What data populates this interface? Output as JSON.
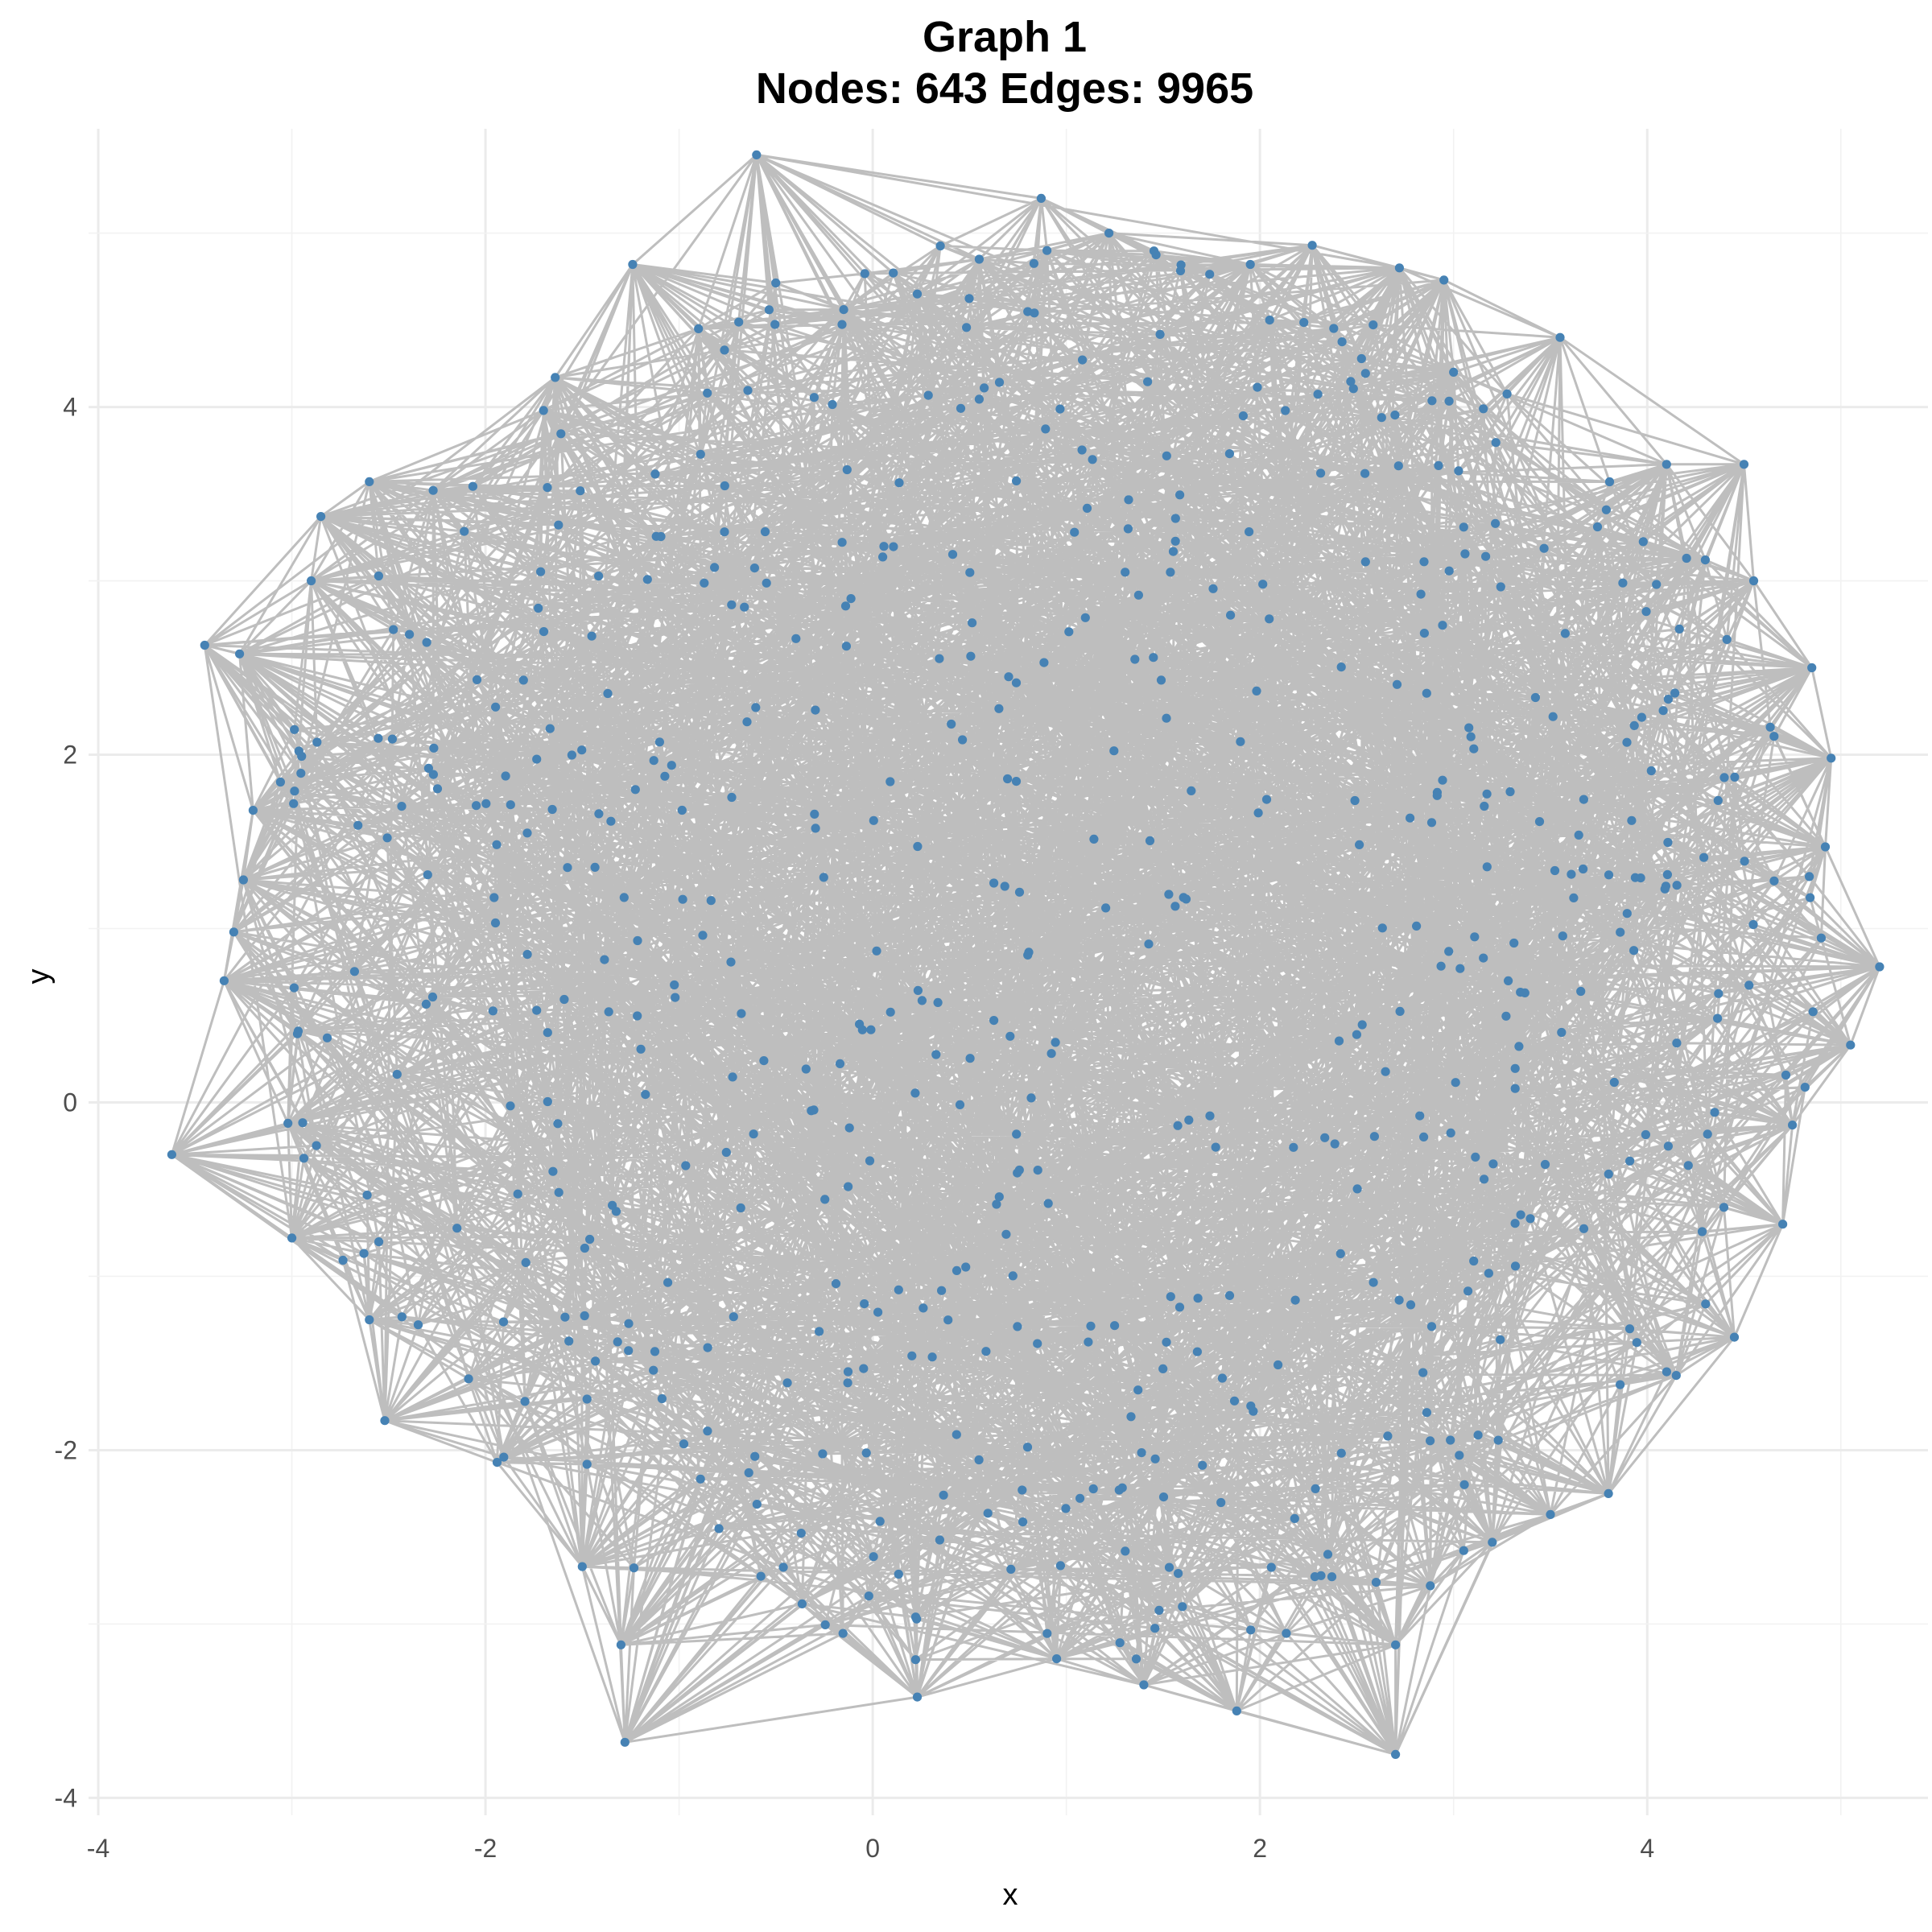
{
  "chart_data": {
    "type": "network",
    "title_line1": "Graph 1",
    "title_line2": "Nodes: 643 Edges: 9965",
    "xlabel": "x",
    "ylabel": "y",
    "xlim": [
      -4.05,
      5.45
    ],
    "ylim": [
      -4.1,
      5.6
    ],
    "x_ticks": [
      -4,
      -2,
      0,
      2,
      4
    ],
    "y_ticks": [
      -4,
      -2,
      0,
      2,
      4
    ],
    "x_tick_labels": [
      "-4",
      "-2",
      "0",
      "2",
      "4"
    ],
    "y_tick_labels": [
      "-4",
      "-2",
      "0",
      "2",
      "4"
    ],
    "grid": true,
    "node_color": "#4682b4",
    "edge_color": "#bebebe",
    "node_count": 643,
    "edge_count": 9965,
    "layout_seed": 12345,
    "boundary_nodes": [
      [
        -0.6,
        5.45
      ],
      [
        0.87,
        5.2
      ],
      [
        1.22,
        5.0
      ],
      [
        2.27,
        4.93
      ],
      [
        2.72,
        4.8
      ],
      [
        2.95,
        4.73
      ],
      [
        3.55,
        4.4
      ],
      [
        4.5,
        3.67
      ],
      [
        4.55,
        3.0
      ],
      [
        4.85,
        2.5
      ],
      [
        4.95,
        1.98
      ],
      [
        4.92,
        1.47
      ],
      [
        5.2,
        0.78
      ],
      [
        5.05,
        0.33
      ],
      [
        4.75,
        -0.13
      ],
      [
        4.7,
        -0.7
      ],
      [
        4.45,
        -1.35
      ],
      [
        4.15,
        -1.57
      ],
      [
        3.8,
        -2.25
      ],
      [
        3.5,
        -2.37
      ],
      [
        3.2,
        -2.53
      ],
      [
        2.88,
        -2.78
      ],
      [
        2.7,
        -3.12
      ],
      [
        2.7,
        -3.75
      ],
      [
        1.88,
        -3.5
      ],
      [
        1.4,
        -3.35
      ],
      [
        0.95,
        -3.2
      ],
      [
        0.23,
        -3.42
      ],
      [
        -1.28,
        -3.68
      ],
      [
        -1.3,
        -3.12
      ],
      [
        -1.5,
        -2.67
      ],
      [
        -1.94,
        -2.07
      ],
      [
        -2.52,
        -1.83
      ],
      [
        -2.6,
        -1.25
      ],
      [
        -3.0,
        -0.78
      ],
      [
        -3.62,
        -0.3
      ],
      [
        -3.02,
        -0.12
      ],
      [
        -3.35,
        0.7
      ],
      [
        -3.3,
        0.98
      ],
      [
        -3.25,
        1.28
      ],
      [
        -3.2,
        1.68
      ],
      [
        -3.27,
        2.58
      ],
      [
        -3.45,
        2.63
      ],
      [
        -2.9,
        3.0
      ],
      [
        -2.85,
        3.37
      ],
      [
        -2.6,
        3.57
      ],
      [
        -2.27,
        3.52
      ],
      [
        -1.7,
        3.98
      ],
      [
        -1.64,
        4.17
      ],
      [
        -1.24,
        4.82
      ],
      [
        -0.9,
        4.45
      ],
      [
        -0.15,
        4.56
      ],
      [
        0.23,
        4.65
      ],
      [
        0.55,
        4.85
      ],
      [
        0.9,
        4.9
      ],
      [
        1.95,
        4.82
      ],
      [
        2.05,
        4.5
      ],
      [
        3.0,
        4.2
      ],
      [
        4.1,
        3.67
      ],
      [
        4.3,
        3.12
      ]
    ]
  }
}
